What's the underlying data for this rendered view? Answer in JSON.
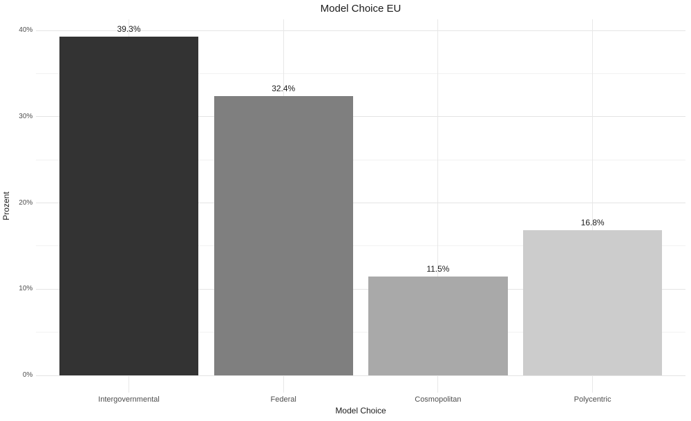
{
  "chart_data": {
    "type": "bar",
    "title": "Model Choice EU",
    "xlabel": "Model Choice",
    "ylabel": "Prozent",
    "categories": [
      "Intergovernmental",
      "Federal",
      "Cosmopolitan",
      "Polycentric"
    ],
    "values": [
      39.3,
      32.4,
      11.5,
      16.8
    ],
    "bar_labels": [
      "39.3%",
      "32.4%",
      "11.5%",
      "16.8%"
    ],
    "bar_colors": [
      "#333333",
      "#7f7f7f",
      "#a9a9a9",
      "#cccccc"
    ],
    "ylim": [
      0,
      41.3
    ],
    "yticks": [
      {
        "value": 0,
        "label": "0%"
      },
      {
        "value": 10,
        "label": "10%"
      },
      {
        "value": 20,
        "label": "20%"
      },
      {
        "value": 30,
        "label": "30%"
      },
      {
        "value": 40,
        "label": "40%"
      }
    ],
    "yticks_minor": [
      5,
      15,
      25,
      35
    ],
    "grid": true,
    "legend_position": "none",
    "style": {
      "background": "#ffffff",
      "grid_major_color": "#e4e4e4",
      "grid_minor_color": "#f2f2f2",
      "axis_text_color": "#4d4d4d",
      "title_text_color": "#1a1a1a"
    }
  }
}
